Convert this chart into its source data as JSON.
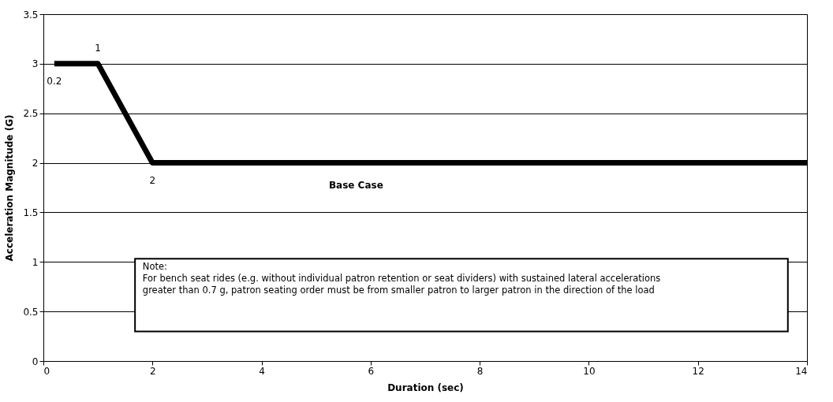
{
  "chart_data": {
    "type": "line",
    "xlabel": "Duration (sec)",
    "ylabel": "Acceleration Magnitude (G)",
    "x": [
      0.2,
      1,
      2,
      14
    ],
    "series": [
      {
        "color": "#000000",
        "values": [
          3,
          3,
          2,
          2
        ]
      }
    ],
    "xlim": [
      0,
      14
    ],
    "xticks": [
      0,
      2,
      4,
      6,
      8,
      10,
      12,
      14
    ],
    "ylim": [
      0,
      3.5
    ],
    "yticks": [
      0,
      0.5,
      1,
      1.5,
      2,
      2.5,
      3,
      3.5
    ],
    "grid": "y",
    "marker": "none",
    "line_style": "solid",
    "annotations": [
      {
        "text": "0.2",
        "x": 0.2,
        "y": 3
      },
      {
        "text": "1",
        "x": 1,
        "y": 3
      },
      {
        "text": "2",
        "x": 2,
        "y": 2
      },
      {
        "text": "Base Case",
        "x": 4.8,
        "y": 2
      },
      "Note:\nFor bench seat rides (e.g. without individual patron retention or seat dividers) with sustained lateral accelerations\ngreater than 0.7 g, patron seating order must be from smaller patron to larger patron in the direction of the load"
    ]
  }
}
